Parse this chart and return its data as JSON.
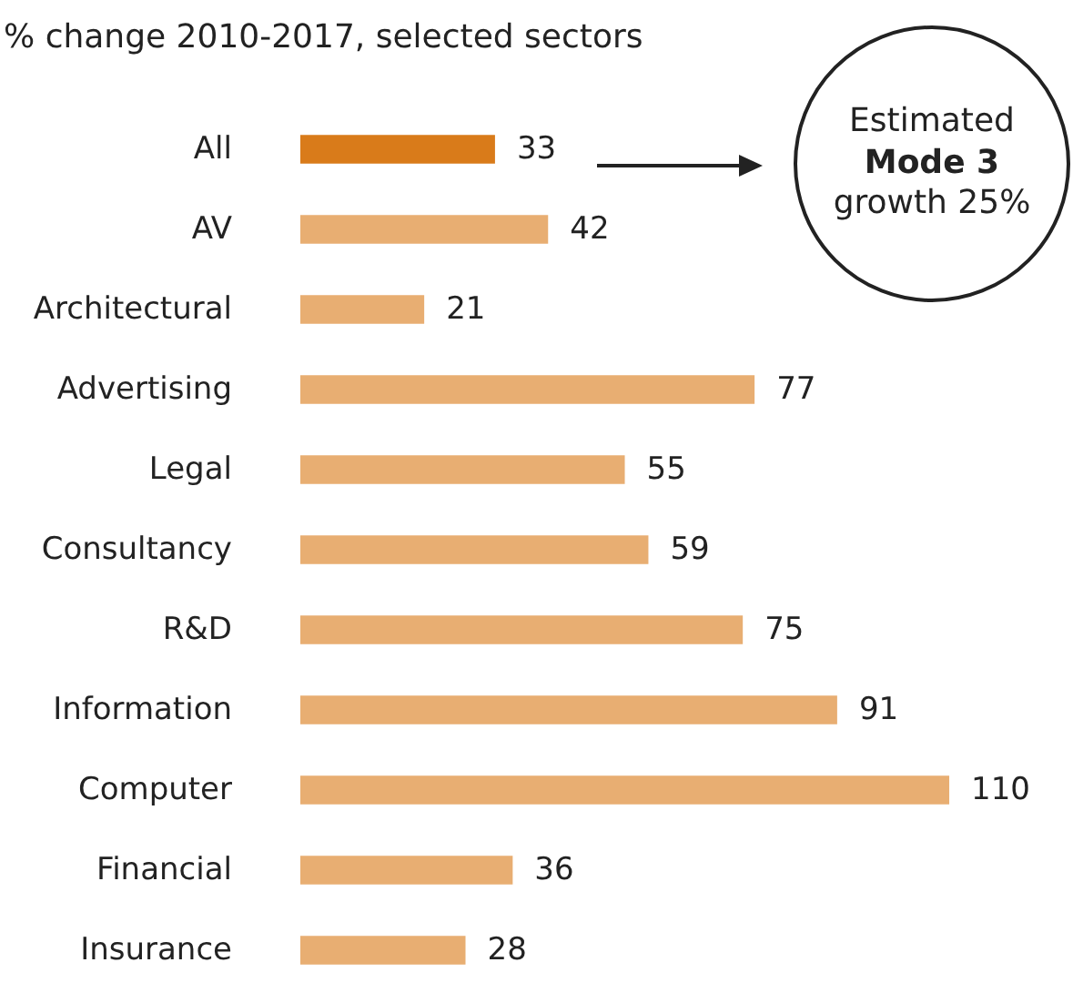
{
  "chart_data": {
    "type": "bar",
    "orientation": "horizontal",
    "title": "% change 2010-2017, selected sectors",
    "categories": [
      "All",
      "AV",
      "Architectural",
      "Advertising",
      "Legal",
      "Consultancy",
      "R&D",
      "Information",
      "Computer",
      "Financial",
      "Insurance"
    ],
    "values": [
      33,
      42,
      21,
      77,
      55,
      59,
      75,
      91,
      110,
      36,
      28
    ],
    "colors": [
      "#d97b1a",
      "#e8ae72",
      "#e8ae72",
      "#e8ae72",
      "#e8ae72",
      "#e8ae72",
      "#e8ae72",
      "#e8ae72",
      "#e8ae72",
      "#e8ae72",
      "#e8ae72"
    ],
    "data_labels": true,
    "annotations": [
      "Estimated Mode 3 growth 25%"
    ]
  }
}
